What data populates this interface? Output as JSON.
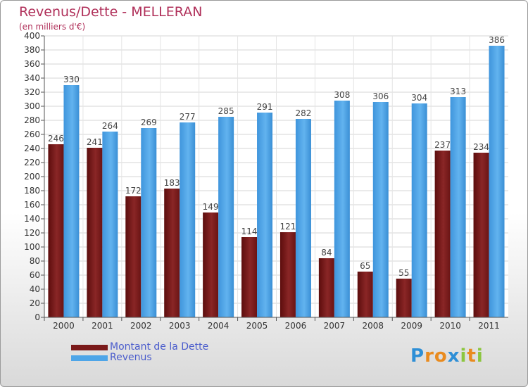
{
  "header": {
    "title": "Revenus/Dette - MELLERAN",
    "subtitle": "(en milliers d'€)"
  },
  "legend": {
    "items": [
      {
        "label": "Montant de la Dette",
        "color": "#7a1a1a"
      },
      {
        "label": "Revenus",
        "color": "#4ea5e8"
      }
    ]
  },
  "logo": {
    "letters": [
      {
        "char": "P",
        "color": "#2e8fd6"
      },
      {
        "char": "r",
        "color": "#e98b1f"
      },
      {
        "char": "o",
        "color": "#e98b1f"
      },
      {
        "char": "x",
        "color": "#2e8fd6"
      },
      {
        "char": "i",
        "color": "#8cc63f"
      },
      {
        "char": "t",
        "color": "#e98b1f"
      },
      {
        "char": "i",
        "color": "#8cc63f"
      }
    ]
  },
  "chart_data": {
    "type": "bar",
    "title": "Revenus/Dette - MELLERAN",
    "subtitle": "(en milliers d'€)",
    "categories": [
      "2000",
      "2001",
      "2002",
      "2003",
      "2004",
      "2005",
      "2006",
      "2007",
      "2008",
      "2009",
      "2010",
      "2011"
    ],
    "series": [
      {
        "name": "Montant de la Dette",
        "color": "#7a1a1a",
        "values": [
          246,
          241,
          172,
          183,
          149,
          114,
          121,
          84,
          65,
          55,
          237,
          234
        ]
      },
      {
        "name": "Revenus",
        "color": "#4ea5e8",
        "values": [
          330,
          264,
          269,
          277,
          285,
          291,
          282,
          308,
          306,
          304,
          313,
          386
        ]
      }
    ],
    "ylim": [
      0,
      400
    ],
    "yticks": [
      0,
      20,
      40,
      60,
      80,
      100,
      120,
      140,
      160,
      180,
      200,
      220,
      240,
      260,
      280,
      300,
      320,
      340,
      360,
      380,
      400
    ],
    "grid": true,
    "legend_position": "bottom-left"
  }
}
